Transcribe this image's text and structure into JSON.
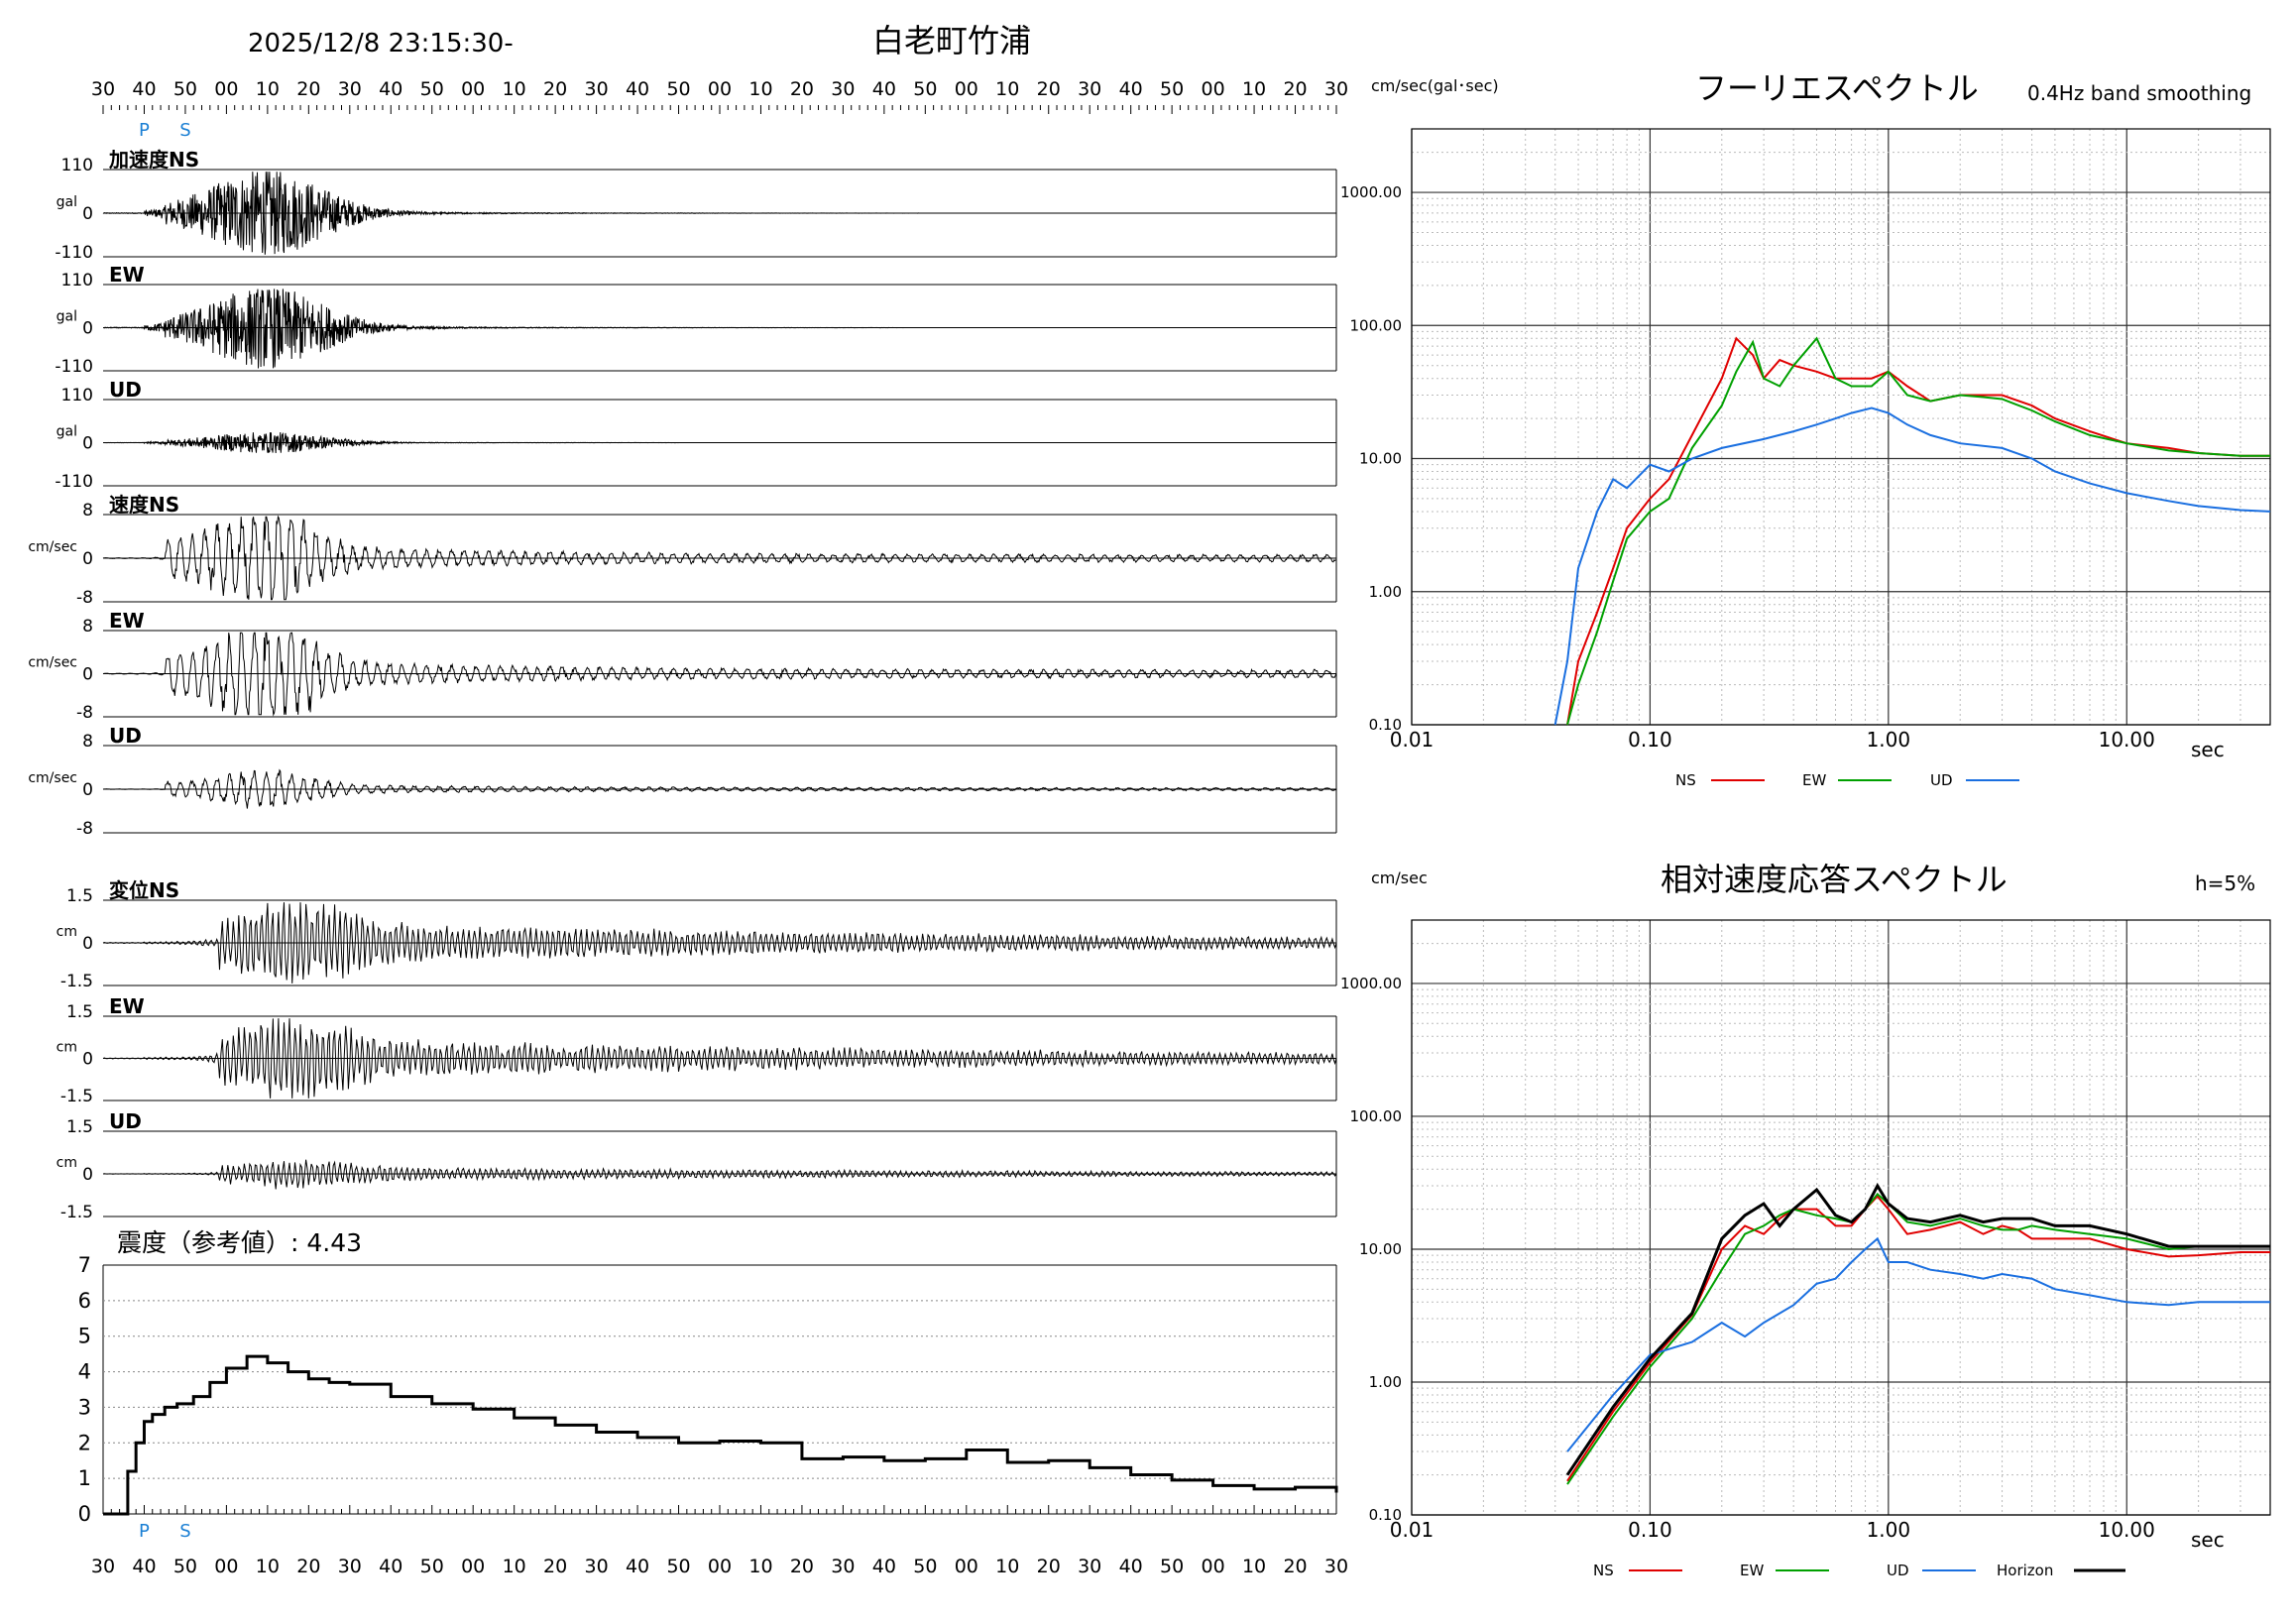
{
  "header": {
    "datetime": "2025/12/8 23:15:30-",
    "station": "白老町竹浦",
    "time_ticks": [
      "30",
      "40",
      "50",
      "00",
      "10",
      "20",
      "30",
      "40",
      "50",
      "00",
      "10",
      "20",
      "30",
      "40",
      "50",
      "00",
      "10",
      "20",
      "30",
      "40",
      "50",
      "00",
      "10",
      "20",
      "30",
      "40",
      "50",
      "00",
      "10",
      "20",
      "30"
    ],
    "p_label": "P",
    "s_label": "S"
  },
  "colors": {
    "ns": "#e00000",
    "ew": "#00a000",
    "ud": "#1a6fe0",
    "horizon": "#000000",
    "marker": "#1a7fd4"
  },
  "waveforms": [
    {
      "label": "加速度NS",
      "unit": "gal",
      "ymax": "110",
      "zero": "0",
      "ymin": "-110",
      "kind": "acc",
      "amp": 1.0
    },
    {
      "label": "EW",
      "unit": "gal",
      "ymax": "110",
      "zero": "0",
      "ymin": "-110",
      "kind": "acc",
      "amp": 0.95
    },
    {
      "label": "UD",
      "unit": "gal",
      "ymax": "110",
      "zero": "0",
      "ymin": "-110",
      "kind": "acc",
      "amp": 0.25
    },
    {
      "label": "速度NS",
      "unit": "cm/sec",
      "ymax": "8",
      "zero": "0",
      "ymin": "-8",
      "kind": "vel",
      "amp": 0.9
    },
    {
      "label": "EW",
      "unit": "cm/sec",
      "ymax": "8",
      "zero": "0",
      "ymin": "-8",
      "kind": "vel",
      "amp": 1.0
    },
    {
      "label": "UD",
      "unit": "cm/sec",
      "ymax": "8",
      "zero": "0",
      "ymin": "-8",
      "kind": "vel",
      "amp": 0.35
    },
    {
      "label": "変位NS",
      "unit": "cm",
      "ymax": "1.5",
      "zero": "0",
      "ymin": "-1.5",
      "kind": "disp",
      "amp": 1.0
    },
    {
      "label": "EW",
      "unit": "cm",
      "ymax": "1.5",
      "zero": "0",
      "ymin": "-1.5",
      "kind": "disp",
      "amp": 1.0
    },
    {
      "label": "UD",
      "unit": "cm",
      "ymax": "1.5",
      "zero": "0",
      "ymin": "-1.5",
      "kind": "disp",
      "amp": 0.35
    }
  ],
  "intensity": {
    "title": "震度（参考値）: 4.43",
    "y_ticks": [
      "0",
      "1",
      "2",
      "3",
      "4",
      "5",
      "6",
      "7"
    ]
  },
  "chart_data": [
    {
      "type": "line",
      "title": "震度（参考値）: 4.43",
      "ylim": [
        0,
        7
      ],
      "x_unit": "seconds from 23:15:30",
      "series": [
        {
          "x": [
            0,
            5,
            6,
            8,
            10,
            12,
            15,
            18,
            22,
            26,
            30,
            35,
            40,
            45,
            50,
            55,
            60,
            70,
            80,
            90,
            100,
            110,
            120,
            130,
            140,
            150,
            160,
            170,
            180,
            190,
            200,
            210,
            220,
            230,
            240,
            250,
            260,
            270,
            280,
            290,
            300
          ],
          "values": [
            0,
            0,
            1.2,
            2.0,
            2.6,
            2.8,
            3.0,
            3.1,
            3.3,
            3.7,
            4.1,
            4.43,
            4.25,
            4.0,
            3.8,
            3.7,
            3.65,
            3.3,
            3.1,
            2.95,
            2.7,
            2.5,
            2.3,
            2.15,
            2.0,
            2.05,
            2.0,
            1.55,
            1.6,
            1.5,
            1.55,
            1.8,
            1.45,
            1.5,
            1.3,
            1.1,
            0.95,
            0.8,
            0.7,
            0.75,
            0.6
          ]
        }
      ]
    },
    {
      "type": "line",
      "title": "フーリエスペクトル",
      "subtitle": "0.4Hz band smoothing",
      "ylabel": "cm/sec(gal･sec)",
      "xlabel": "sec",
      "xscale": "log",
      "yscale": "log",
      "xlim": [
        0.01,
        40
      ],
      "ylim": [
        0.1,
        3000
      ],
      "x_ticks": [
        "0.01",
        "0.10",
        "1.00",
        "10.00"
      ],
      "y_ticks": [
        "0.10",
        "1.00",
        "10.00",
        "100.00",
        "1000.00"
      ],
      "series": [
        {
          "name": "NS",
          "x": [
            0.045,
            0.05,
            0.06,
            0.07,
            0.08,
            0.1,
            0.12,
            0.15,
            0.2,
            0.23,
            0.27,
            0.3,
            0.35,
            0.4,
            0.5,
            0.6,
            0.7,
            0.85,
            1.0,
            1.2,
            1.5,
            2.0,
            2.5,
            3.0,
            4.0,
            5.0,
            7.0,
            10.0,
            15.0,
            20.0,
            30.0,
            40.0
          ],
          "values": [
            0.1,
            0.3,
            0.7,
            1.5,
            3,
            5,
            7,
            15,
            40,
            80,
            60,
            40,
            55,
            50,
            45,
            40,
            40,
            40,
            45,
            35,
            27,
            30,
            30,
            30,
            25,
            20,
            16,
            13,
            12,
            11,
            10.5,
            10.5
          ]
        },
        {
          "name": "EW",
          "x": [
            0.045,
            0.05,
            0.06,
            0.07,
            0.08,
            0.1,
            0.12,
            0.15,
            0.2,
            0.23,
            0.27,
            0.3,
            0.35,
            0.4,
            0.5,
            0.6,
            0.7,
            0.85,
            1.0,
            1.2,
            1.5,
            2.0,
            2.5,
            3.0,
            4.0,
            5.0,
            7.0,
            10.0,
            15.0,
            20.0,
            30.0,
            40.0
          ],
          "values": [
            0.1,
            0.2,
            0.5,
            1.2,
            2.5,
            4,
            5,
            12,
            25,
            45,
            75,
            40,
            35,
            50,
            80,
            40,
            35,
            35,
            45,
            30,
            27,
            30,
            29,
            28,
            23,
            19,
            15,
            13,
            11.5,
            11,
            10.5,
            10.5
          ]
        },
        {
          "name": "UD",
          "x": [
            0.04,
            0.045,
            0.05,
            0.06,
            0.07,
            0.08,
            0.1,
            0.12,
            0.15,
            0.2,
            0.3,
            0.4,
            0.5,
            0.6,
            0.7,
            0.85,
            1.0,
            1.2,
            1.5,
            2.0,
            3.0,
            4.0,
            5.0,
            7.0,
            10.0,
            15.0,
            20.0,
            30.0,
            40.0
          ],
          "values": [
            0.1,
            0.3,
            1.5,
            4,
            7,
            6,
            9,
            8,
            10,
            12,
            14,
            16,
            18,
            20,
            22,
            24,
            22,
            18,
            15,
            13,
            12,
            10,
            8,
            6.5,
            5.5,
            4.8,
            4.4,
            4.1,
            4.0
          ]
        }
      ]
    },
    {
      "type": "line",
      "title": "相対速度応答スペクトル",
      "subtitle": "h=5%",
      "ylabel": "cm/sec",
      "xlabel": "sec",
      "xscale": "log",
      "yscale": "log",
      "xlim": [
        0.01,
        40
      ],
      "ylim": [
        0.1,
        3000
      ],
      "x_ticks": [
        "0.01",
        "0.10",
        "1.00",
        "10.00"
      ],
      "y_ticks": [
        "0.10",
        "1.00",
        "10.00",
        "100.00",
        "1000.00"
      ],
      "series": [
        {
          "name": "NS",
          "x": [
            0.045,
            0.07,
            0.1,
            0.15,
            0.2,
            0.25,
            0.3,
            0.35,
            0.4,
            0.5,
            0.6,
            0.7,
            0.8,
            0.9,
            1.0,
            1.2,
            1.5,
            2.0,
            2.5,
            3.0,
            3.5,
            4.0,
            5.0,
            7.0,
            10.0,
            15.0,
            20.0,
            30.0,
            40.0
          ],
          "values": [
            0.18,
            0.6,
            1.4,
            3.2,
            10,
            15,
            13,
            17,
            20,
            20,
            15,
            15,
            20,
            25,
            20,
            13,
            14,
            16,
            13,
            15,
            14,
            12,
            12,
            12,
            10,
            8.8,
            9,
            9.5,
            9.5
          ]
        },
        {
          "name": "EW",
          "x": [
            0.045,
            0.07,
            0.1,
            0.15,
            0.2,
            0.25,
            0.3,
            0.35,
            0.4,
            0.5,
            0.6,
            0.7,
            0.8,
            0.9,
            1.0,
            1.2,
            1.5,
            2.0,
            2.5,
            3.0,
            3.5,
            4.0,
            5.0,
            7.0,
            10.0,
            15.0,
            20.0,
            30.0,
            40.0
          ],
          "values": [
            0.17,
            0.55,
            1.3,
            3,
            7,
            13,
            15,
            18,
            20,
            18,
            17,
            16,
            20,
            26,
            22,
            16,
            15,
            17,
            15,
            14,
            14,
            15,
            14,
            13,
            12,
            10,
            10.5,
            10.5,
            10.5
          ]
        },
        {
          "name": "UD",
          "x": [
            0.045,
            0.07,
            0.1,
            0.15,
            0.2,
            0.25,
            0.3,
            0.4,
            0.5,
            0.6,
            0.7,
            0.8,
            0.9,
            1.0,
            1.2,
            1.5,
            2.0,
            2.5,
            3.0,
            4.0,
            5.0,
            7.0,
            10.0,
            15.0,
            20.0,
            30.0,
            40.0
          ],
          "values": [
            0.3,
            0.8,
            1.6,
            2,
            2.8,
            2.2,
            2.8,
            3.8,
            5.5,
            6,
            8,
            10,
            12,
            8,
            8,
            7,
            6.5,
            6,
            6.5,
            6,
            5,
            4.5,
            4,
            3.8,
            4,
            4,
            4
          ]
        },
        {
          "name": "Horizon",
          "x": [
            0.045,
            0.07,
            0.1,
            0.15,
            0.2,
            0.25,
            0.3,
            0.35,
            0.4,
            0.5,
            0.6,
            0.7,
            0.8,
            0.9,
            1.0,
            1.2,
            1.5,
            2.0,
            2.5,
            3.0,
            3.5,
            4.0,
            5.0,
            7.0,
            10.0,
            15.0,
            20.0,
            30.0,
            40.0
          ],
          "values": [
            0.2,
            0.65,
            1.5,
            3.3,
            12,
            18,
            22,
            15,
            20,
            28,
            18,
            16,
            20,
            30,
            22,
            17,
            16,
            18,
            16,
            17,
            17,
            17,
            15,
            15,
            13,
            10.5,
            10.5,
            10.5,
            10.5
          ]
        }
      ]
    }
  ]
}
